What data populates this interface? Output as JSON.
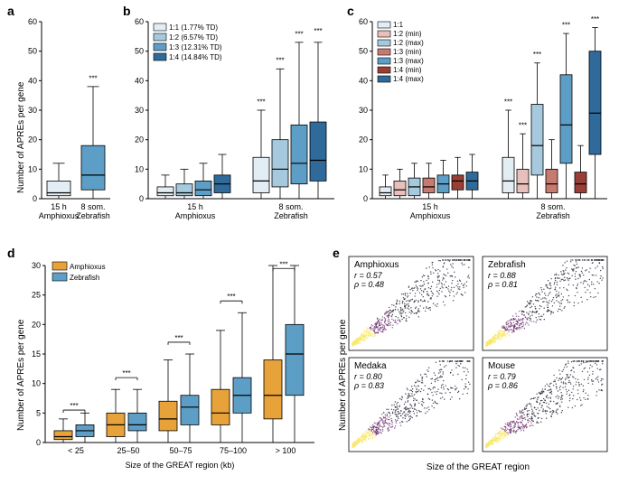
{
  "global": {
    "bg": "#ffffff",
    "axis_color": "#000000",
    "box_stroke": "#000000",
    "whisker_stroke": "#000000",
    "sig_marker": "***"
  },
  "panel_a": {
    "label": "a",
    "ylabel": "Number of APREs per gene",
    "ylim": [
      0,
      60
    ],
    "ytick_step": 10,
    "categories": [
      "15 h\nAmphioxus",
      "8 som.\nZebrafish"
    ],
    "boxes": [
      {
        "q1": 1,
        "med": 2,
        "q3": 6,
        "lo": 0,
        "hi": 12,
        "fill": "#e3edf4"
      },
      {
        "q1": 3,
        "med": 8,
        "q3": 18,
        "lo": 0,
        "hi": 38,
        "fill": "#5d9ec6"
      }
    ],
    "sig": [
      {
        "i": 1,
        "y": 40
      }
    ]
  },
  "panel_b": {
    "label": "b",
    "ylim": [
      0,
      60
    ],
    "ytick_step": 10,
    "groups": [
      "15 h\nAmphioxus",
      "8 som.\nZebrafish"
    ],
    "legend": [
      {
        "label": "1:1 (1.77% TD)",
        "color": "#e3edf4"
      },
      {
        "label": "1:2 (6.57% TD)",
        "color": "#a6c9de"
      },
      {
        "label": "1:3 (12.31% TD)",
        "color": "#5d9ec6"
      },
      {
        "label": "1:4 (14.84% TD)",
        "color": "#2f6a9a"
      }
    ],
    "boxes": [
      [
        {
          "q1": 1,
          "med": 2,
          "q3": 4,
          "lo": 0,
          "hi": 8,
          "fill": "#e3edf4"
        },
        {
          "q1": 1,
          "med": 2,
          "q3": 5,
          "lo": 0,
          "hi": 10,
          "fill": "#a6c9de"
        },
        {
          "q1": 1,
          "med": 3,
          "q3": 6,
          "lo": 0,
          "hi": 12,
          "fill": "#5d9ec6"
        },
        {
          "q1": 2,
          "med": 5,
          "q3": 8,
          "lo": 0,
          "hi": 15,
          "fill": "#2f6a9a"
        }
      ],
      [
        {
          "q1": 2,
          "med": 6,
          "q3": 14,
          "lo": 0,
          "hi": 30,
          "fill": "#e3edf4"
        },
        {
          "q1": 4,
          "med": 10,
          "q3": 20,
          "lo": 0,
          "hi": 44,
          "fill": "#a6c9de"
        },
        {
          "q1": 5,
          "med": 12,
          "q3": 25,
          "lo": 0,
          "hi": 53,
          "fill": "#5d9ec6"
        },
        {
          "q1": 6,
          "med": 13,
          "q3": 26,
          "lo": 0,
          "hi": 53,
          "fill": "#2f6a9a"
        }
      ]
    ],
    "sig": [
      {
        "g": 1,
        "i": 0,
        "y": 32
      },
      {
        "g": 1,
        "i": 1,
        "y": 46
      },
      {
        "g": 1,
        "i": 2,
        "y": 55
      },
      {
        "g": 1,
        "i": 3,
        "y": 56
      }
    ]
  },
  "panel_c": {
    "label": "c",
    "ylim": [
      0,
      60
    ],
    "ytick_step": 10,
    "groups": [
      "15 h\nAmphioxus",
      "8 som.\nZebrafish"
    ],
    "legend": [
      {
        "label": "1:1",
        "color": "#e3edf4"
      },
      {
        "label": "1:2 (min)",
        "color": "#e8c0bb"
      },
      {
        "label": "1:2 (max)",
        "color": "#a6c9de"
      },
      {
        "label": "1:3 (min)",
        "color": "#c77a70"
      },
      {
        "label": "1:3 (max)",
        "color": "#5d9ec6"
      },
      {
        "label": "1:4 (min)",
        "color": "#9a3f36"
      },
      {
        "label": "1:4 (max)",
        "color": "#2f6a9a"
      }
    ],
    "boxes": [
      [
        {
          "q1": 1,
          "med": 2,
          "q3": 4,
          "lo": 0,
          "hi": 8,
          "fill": "#e3edf4"
        },
        {
          "q1": 1,
          "med": 3,
          "q3": 6,
          "lo": 0,
          "hi": 10,
          "fill": "#e8c0bb"
        },
        {
          "q1": 1,
          "med": 4,
          "q3": 7,
          "lo": 0,
          "hi": 12,
          "fill": "#a6c9de"
        },
        {
          "q1": 2,
          "med": 4,
          "q3": 7,
          "lo": 0,
          "hi": 12,
          "fill": "#c77a70"
        },
        {
          "q1": 2,
          "med": 5,
          "q3": 8,
          "lo": 0,
          "hi": 13,
          "fill": "#5d9ec6"
        },
        {
          "q1": 3,
          "med": 6,
          "q3": 8,
          "lo": 0,
          "hi": 14,
          "fill": "#9a3f36"
        },
        {
          "q1": 3,
          "med": 6,
          "q3": 9,
          "lo": 0,
          "hi": 15,
          "fill": "#2f6a9a"
        }
      ],
      [
        {
          "q1": 2,
          "med": 6,
          "q3": 14,
          "lo": 0,
          "hi": 30,
          "fill": "#e3edf4"
        },
        {
          "q1": 2,
          "med": 5,
          "q3": 10,
          "lo": 0,
          "hi": 22,
          "fill": "#e8c0bb"
        },
        {
          "q1": 8,
          "med": 18,
          "q3": 32,
          "lo": 0,
          "hi": 46,
          "fill": "#a6c9de"
        },
        {
          "q1": 2,
          "med": 5,
          "q3": 10,
          "lo": 0,
          "hi": 20,
          "fill": "#c77a70"
        },
        {
          "q1": 12,
          "med": 25,
          "q3": 42,
          "lo": 0,
          "hi": 56,
          "fill": "#5d9ec6"
        },
        {
          "q1": 2,
          "med": 5,
          "q3": 9,
          "lo": 0,
          "hi": 18,
          "fill": "#9a3f36"
        },
        {
          "q1": 15,
          "med": 29,
          "q3": 50,
          "lo": 0,
          "hi": 58,
          "fill": "#2f6a9a"
        }
      ]
    ],
    "sig": [
      {
        "g": 1,
        "i": 0,
        "y": 32
      },
      {
        "g": 1,
        "i": 1,
        "y": 24
      },
      {
        "g": 1,
        "i": 2,
        "y": 48
      },
      {
        "g": 1,
        "i": 4,
        "y": 58
      },
      {
        "g": 1,
        "i": 6,
        "y": 60
      }
    ]
  },
  "panel_d": {
    "label": "d",
    "ylabel": "Number of APREs per gene",
    "xlabel": "Size of the GREAT region (kb)",
    "ylim": [
      0,
      30
    ],
    "ytick_step": 5,
    "groups": [
      "< 25",
      "25–50",
      "50–75",
      "75–100",
      "> 100"
    ],
    "legend": [
      {
        "label": "Amphioxus",
        "color": "#e8a23a"
      },
      {
        "label": "Zebrafish",
        "color": "#5d9ec6"
      }
    ],
    "boxes": [
      [
        {
          "q1": 0.5,
          "med": 1,
          "q3": 2,
          "lo": 0,
          "hi": 4,
          "fill": "#e8a23a"
        },
        {
          "q1": 1,
          "med": 2,
          "q3": 3,
          "lo": 0,
          "hi": 5,
          "fill": "#5d9ec6"
        }
      ],
      [
        {
          "q1": 1,
          "med": 3,
          "q3": 5,
          "lo": 0,
          "hi": 9,
          "fill": "#e8a23a"
        },
        {
          "q1": 2,
          "med": 3,
          "q3": 5,
          "lo": 0,
          "hi": 9,
          "fill": "#5d9ec6"
        }
      ],
      [
        {
          "q1": 2,
          "med": 4,
          "q3": 7,
          "lo": 0,
          "hi": 14,
          "fill": "#e8a23a"
        },
        {
          "q1": 3,
          "med": 6,
          "q3": 8,
          "lo": 0,
          "hi": 15,
          "fill": "#5d9ec6"
        }
      ],
      [
        {
          "q1": 3,
          "med": 5,
          "q3": 9,
          "lo": 0,
          "hi": 19,
          "fill": "#e8a23a"
        },
        {
          "q1": 5,
          "med": 8,
          "q3": 11,
          "lo": 0,
          "hi": 22,
          "fill": "#5d9ec6"
        }
      ],
      [
        {
          "q1": 4,
          "med": 8,
          "q3": 14,
          "lo": 0,
          "hi": 30,
          "fill": "#e8a23a"
        },
        {
          "q1": 8,
          "med": 15,
          "q3": 20,
          "lo": 0,
          "hi": 30,
          "fill": "#5d9ec6"
        }
      ]
    ],
    "sig_pairs": [
      {
        "g": 0,
        "y": 5.5
      },
      {
        "g": 1,
        "y": 11
      },
      {
        "g": 2,
        "y": 17
      },
      {
        "g": 3,
        "y": 24
      },
      {
        "g": 4,
        "y": 31
      }
    ]
  },
  "panel_e": {
    "label": "e",
    "xlabel": "Size of the GREAT region",
    "ylabel": "Number of APREs per gene",
    "subplots": [
      {
        "title": "Amphioxus",
        "r": "r = 0.57",
        "rho": "ρ = 0.48"
      },
      {
        "title": "Zebrafish",
        "r": "r = 0.88",
        "rho": "ρ = 0.81"
      },
      {
        "title": "Medaka",
        "r": "r = 0.80",
        "rho": "ρ = 0.83"
      },
      {
        "title": "Mouse",
        "r": "r = 0.79",
        "rho": "ρ = 0.86"
      }
    ],
    "scatter_colors": {
      "dense": "#f7e96a",
      "mid": "#6b2d6b",
      "sparse": "#1a1a2e"
    }
  }
}
